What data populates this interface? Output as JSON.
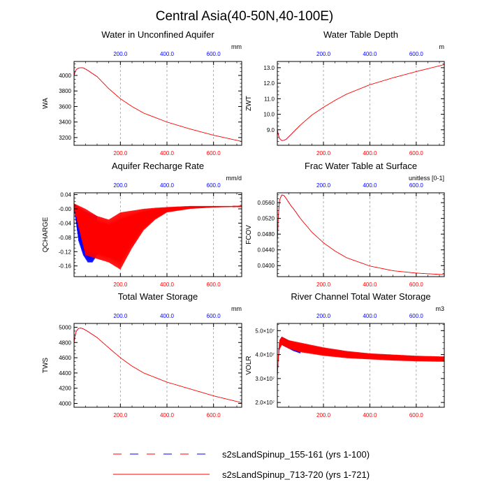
{
  "page_title": "Central Asia(40-50N,40-100E)",
  "colors": {
    "blue": "#0000ff",
    "red": "#ff0000",
    "axis": "#000000",
    "grid": "#9a9a9a"
  },
  "legend": [
    {
      "label": "s2sLandSpinup_155-161 (yrs 1-100)",
      "color": "#0000ff",
      "dash": true
    },
    {
      "label": "s2sLandSpinup_713-720 (yrs 1-721)",
      "color": "#ff0000",
      "dash": false
    }
  ],
  "chart_data": [
    {
      "id": "wa",
      "type": "line",
      "title": "Water in Unconfined Aquifer",
      "ylabel": "WA",
      "units": "mm",
      "xlim": [
        1,
        721
      ],
      "ylim": [
        3100,
        4180
      ],
      "yticks": [
        3200,
        3400,
        3600,
        3800,
        4000
      ],
      "ytick_labels": [
        "3200",
        "3400",
        "3600",
        "3800",
        "4000"
      ],
      "xticks": [
        200,
        400,
        600
      ],
      "xtick_labels": [
        "200.0",
        "400.0",
        "600.0"
      ],
      "series": [
        {
          "name": "s2sLandSpinup_155-161 (yrs 1-100)",
          "color": "#0000ff",
          "style": "dotted",
          "x": [
            1,
            5,
            10,
            20,
            30,
            40,
            50,
            60,
            70,
            80,
            90,
            100
          ],
          "y": [
            4000,
            4040,
            4075,
            4095,
            4100,
            4098,
            4085,
            4065,
            4045,
            4025,
            4005,
            3985
          ]
        },
        {
          "name": "s2sLandSpinup_713-720 (yrs 1-721)",
          "color": "#ff0000",
          "style": "solid",
          "x": [
            1,
            5,
            10,
            20,
            30,
            40,
            60,
            80,
            100,
            150,
            200,
            250,
            300,
            400,
            500,
            600,
            721
          ],
          "y": [
            4000,
            4040,
            4075,
            4095,
            4100,
            4098,
            4065,
            4025,
            3985,
            3830,
            3700,
            3600,
            3515,
            3400,
            3310,
            3230,
            3150
          ]
        }
      ]
    },
    {
      "id": "zwt",
      "type": "line",
      "title": "Water Table Depth",
      "ylabel": "ZWT",
      "units": "m",
      "xlim": [
        1,
        721
      ],
      "ylim": [
        8.0,
        13.4
      ],
      "yticks": [
        9,
        10,
        11,
        12,
        13
      ],
      "ytick_labels": [
        "9.0",
        "10.0",
        "11.0",
        "12.0",
        "13.0"
      ],
      "xticks": [
        200,
        400,
        600
      ],
      "xtick_labels": [
        "200.0",
        "400.0",
        "600.0"
      ],
      "series": [
        {
          "name": "s2sLandSpinup_155-161 (yrs 1-100)",
          "color": "#0000ff",
          "style": "dotted",
          "x": [
            1,
            5,
            10,
            20,
            30,
            40,
            50,
            60,
            70,
            80,
            90,
            100
          ],
          "y": [
            9.0,
            8.7,
            8.45,
            8.3,
            8.32,
            8.4,
            8.55,
            8.7,
            8.85,
            9.0,
            9.15,
            9.3
          ]
        },
        {
          "name": "s2sLandSpinup_713-720 (yrs 1-721)",
          "color": "#ff0000",
          "style": "solid",
          "x": [
            1,
            5,
            10,
            20,
            30,
            40,
            60,
            80,
            100,
            150,
            200,
            250,
            300,
            400,
            500,
            600,
            721
          ],
          "y": [
            9.0,
            8.7,
            8.45,
            8.3,
            8.32,
            8.4,
            8.7,
            9.0,
            9.3,
            9.95,
            10.45,
            10.9,
            11.3,
            11.9,
            12.35,
            12.75,
            13.2
          ]
        }
      ]
    },
    {
      "id": "qcharge",
      "type": "line",
      "title": "Aquifer Recharge Rate",
      "ylabel": "QCHARGE",
      "units": "mm/d",
      "xlim": [
        1,
        721
      ],
      "ylim": [
        -0.19,
        0.045
      ],
      "yticks": [
        -0.16,
        -0.12,
        -0.08,
        -0.04,
        0.0,
        0.04
      ],
      "ytick_labels": [
        "-0.16",
        "-0.12",
        "-0.08",
        "-0.04",
        "-0.00",
        "0.04"
      ],
      "xticks": [
        200,
        400,
        600
      ],
      "xtick_labels": [
        "200.0",
        "400.0",
        "600.0"
      ],
      "oscillating": true,
      "series": [
        {
          "name": "s2sLandSpinup_155-161 (yrs 1-100)",
          "color": "#0000ff",
          "style": "solid",
          "x": [
            1,
            20,
            40,
            60,
            80,
            100
          ],
          "base": [
            0.015,
            0.005,
            -0.005,
            -0.01,
            -0.015,
            -0.02
          ],
          "low": [
            0.0,
            -0.09,
            -0.13,
            -0.15,
            -0.15,
            -0.13
          ]
        },
        {
          "name": "s2sLandSpinup_713-720 (yrs 1-721)",
          "color": "#ff0000",
          "style": "solid",
          "x": [
            1,
            50,
            100,
            150,
            200,
            250,
            300,
            350,
            400,
            500,
            600,
            721
          ],
          "base": [
            0.015,
            0.0,
            -0.02,
            -0.03,
            -0.01,
            -0.005,
            0.0,
            0.003,
            0.005,
            0.008,
            0.008,
            0.008
          ],
          "low": [
            0.0,
            -0.13,
            -0.14,
            -0.15,
            -0.17,
            -0.11,
            -0.06,
            -0.03,
            -0.01,
            0.0,
            0.004,
            0.006
          ]
        }
      ]
    },
    {
      "id": "fcov",
      "type": "line",
      "title": "Frac Water Table at Surface",
      "ylabel": "FCOV",
      "units": "unitless [0-1]",
      "xlim": [
        1,
        721
      ],
      "ylim": [
        0.0372,
        0.0585
      ],
      "yticks": [
        0.04,
        0.044,
        0.048,
        0.052,
        0.056
      ],
      "ytick_labels": [
        "0.0400",
        "0.0440",
        "0.0480",
        "0.0520",
        "0.0560"
      ],
      "xticks": [
        200,
        400,
        600
      ],
      "xtick_labels": [
        "200.0",
        "400.0",
        "600.0"
      ],
      "series": [
        {
          "name": "s2sLandSpinup_155-161 (yrs 1-100)",
          "color": "#0000ff",
          "style": "dotted",
          "x": [
            1,
            5,
            10,
            20,
            30,
            40,
            50,
            60,
            70,
            80,
            90,
            100
          ],
          "y": [
            0.046,
            0.052,
            0.0565,
            0.058,
            0.0578,
            0.057,
            0.056,
            0.0552,
            0.0545,
            0.0537,
            0.0528,
            0.052
          ]
        },
        {
          "name": "s2sLandSpinup_713-720 (yrs 1-721)",
          "color": "#ff0000",
          "style": "solid",
          "x": [
            1,
            5,
            10,
            20,
            30,
            40,
            60,
            80,
            100,
            150,
            200,
            250,
            300,
            400,
            500,
            600,
            721
          ],
          "y": [
            0.046,
            0.052,
            0.0565,
            0.058,
            0.0578,
            0.057,
            0.0552,
            0.0537,
            0.052,
            0.0485,
            0.0458,
            0.0437,
            0.042,
            0.0399,
            0.0387,
            0.0381,
            0.0377
          ]
        }
      ]
    },
    {
      "id": "tws",
      "type": "line",
      "title": "Total Water Storage",
      "ylabel": "TWS",
      "units": "mm",
      "xlim": [
        1,
        721
      ],
      "ylim": [
        3950,
        5050
      ],
      "yticks": [
        4000,
        4200,
        4400,
        4600,
        4800,
        5000
      ],
      "ytick_labels": [
        "4000",
        "4200",
        "4400",
        "4600",
        "4800",
        "5000"
      ],
      "xticks": [
        200,
        400,
        600
      ],
      "xtick_labels": [
        "200.0",
        "400.0",
        "600.0"
      ],
      "series": [
        {
          "name": "s2sLandSpinup_155-161 (yrs 1-100)",
          "color": "#0000ff",
          "style": "dotted",
          "x": [
            1,
            5,
            10,
            20,
            30,
            40,
            50,
            60,
            70,
            80,
            90,
            100
          ],
          "y": [
            4800,
            4880,
            4945,
            4985,
            4990,
            4980,
            4965,
            4945,
            4925,
            4905,
            4885,
            4865
          ]
        },
        {
          "name": "s2sLandSpinup_713-720 (yrs 1-721)",
          "color": "#ff0000",
          "style": "solid",
          "x": [
            1,
            5,
            10,
            20,
            30,
            40,
            60,
            80,
            100,
            150,
            200,
            250,
            300,
            400,
            500,
            600,
            721
          ],
          "y": [
            4800,
            4880,
            4945,
            4985,
            4990,
            4980,
            4945,
            4905,
            4865,
            4730,
            4600,
            4490,
            4400,
            4280,
            4190,
            4100,
            4010
          ]
        }
      ]
    },
    {
      "id": "volr",
      "type": "line",
      "title": "River Channel Total Water Storage",
      "ylabel": "VOLR",
      "units": "m3",
      "xlim": [
        1,
        721
      ],
      "ylim": [
        18000000.0,
        53000000.0
      ],
      "yticks": [
        20000000.0,
        30000000.0,
        40000000.0,
        50000000.0
      ],
      "ytick_labels": [
        "2.0×10⁷",
        "3.0×10⁷",
        "4.0×10⁷",
        "5.0×10⁷"
      ],
      "xticks": [
        200,
        400,
        600
      ],
      "xtick_labels": [
        "200.0",
        "400.0",
        "600.0"
      ],
      "oscillating": true,
      "series": [
        {
          "name": "s2sLandSpinup_155-161 (yrs 1-100)",
          "color": "#0000ff",
          "style": "solid",
          "x": [
            1,
            5,
            10,
            20,
            30,
            50,
            70,
            100
          ],
          "base": [
            32000000.0,
            40000000.0,
            46000000.0,
            47500000.0,
            47000000.0,
            46000000.0,
            45000000.0,
            44000000.0
          ],
          "low": [
            30000000.0,
            36000000.0,
            42000000.0,
            44000000.0,
            43500000.0,
            42500000.0,
            41500000.0,
            40500000.0
          ]
        },
        {
          "name": "s2sLandSpinup_713-720 (yrs 1-721)",
          "color": "#ff0000",
          "style": "solid",
          "x": [
            1,
            5,
            10,
            20,
            30,
            50,
            100,
            200,
            300,
            400,
            500,
            600,
            721
          ],
          "base": [
            32000000.0,
            40000000.0,
            46000000.0,
            47500000.0,
            47000000.0,
            46000000.0,
            45000000.0,
            43000000.0,
            41500000.0,
            40500000.0,
            40000000.0,
            39500000.0,
            39200000.0
          ],
          "low": [
            30000000.0,
            36000000.0,
            42000000.0,
            44000000.0,
            43500000.0,
            42500000.0,
            41000000.0,
            39500000.0,
            38500000.0,
            38000000.0,
            37500000.0,
            37200000.0,
            37000000.0
          ]
        }
      ]
    }
  ]
}
